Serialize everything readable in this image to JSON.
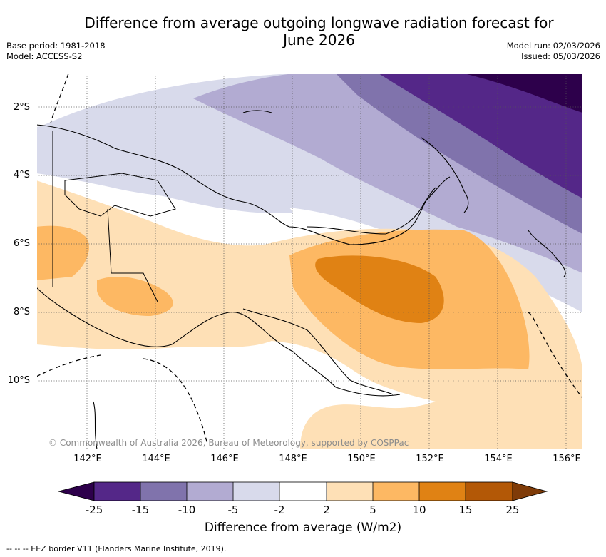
{
  "title_line1": "Difference from average outgoing longwave radiation forecast for",
  "title_line2": "June 2026",
  "base_period": "Base period: 1981-2018",
  "model": "Model: ACCESS-S2",
  "model_run": "Model run: 02/03/2026",
  "issued": "Issued: 05/03/2026",
  "lat_labels": [
    "2°S",
    "4°S",
    "6°S",
    "8°S",
    "10°S"
  ],
  "lon_labels": [
    "142°E",
    "144°E",
    "146°E",
    "148°E",
    "150°E",
    "152°E",
    "154°E",
    "156°E"
  ],
  "copyright": "© Commonwealth of Australia 2026, Bureau of Meteorology, supported by COSPPac",
  "colorbar": {
    "title": "Difference from average (W/m2)",
    "ticks": [
      "-25",
      "-15",
      "-10",
      "-5",
      "-2",
      "2",
      "5",
      "10",
      "15",
      "25"
    ],
    "colors": {
      "below_min": "#2d004b",
      "c1": "#542788",
      "c2": "#8073ac",
      "c3": "#b2abd2",
      "c4": "#d8daeb",
      "c5": "#ffffff",
      "c6": "#fee0b6",
      "c7": "#fdb863",
      "c8": "#e08214",
      "c9": "#b35806",
      "above_max": "#7f3b08"
    }
  },
  "footnote": "-- -- -- EEZ border V11 (Flanders Marine Institute, 2019)."
}
